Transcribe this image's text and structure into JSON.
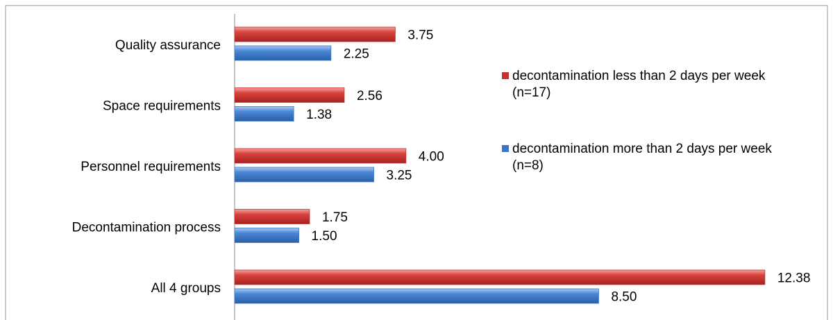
{
  "chart_data": {
    "type": "bar",
    "orientation": "horizontal",
    "categories": [
      "Quality assurance",
      "Space requirements",
      "Personnel requirements",
      "Decontamination process",
      "All 4 groups"
    ],
    "series": [
      {
        "name": "decontamination less than 2 days per week (n=17)",
        "color": "#c8302e",
        "values": [
          3.75,
          2.56,
          4.0,
          1.75,
          12.38
        ],
        "value_labels": [
          "3.75",
          "2.56",
          "4.00",
          "1.75",
          "12.38"
        ]
      },
      {
        "name": "decontamination more than 2 days per week (n=8)",
        "color": "#3b77c6",
        "values": [
          2.25,
          1.38,
          3.25,
          1.5,
          8.5
        ],
        "value_labels": [
          "2.25",
          "1.38",
          "3.25",
          "1.50",
          "8.50"
        ]
      }
    ],
    "xlim": [
      0,
      13.5
    ],
    "legend": "right"
  }
}
